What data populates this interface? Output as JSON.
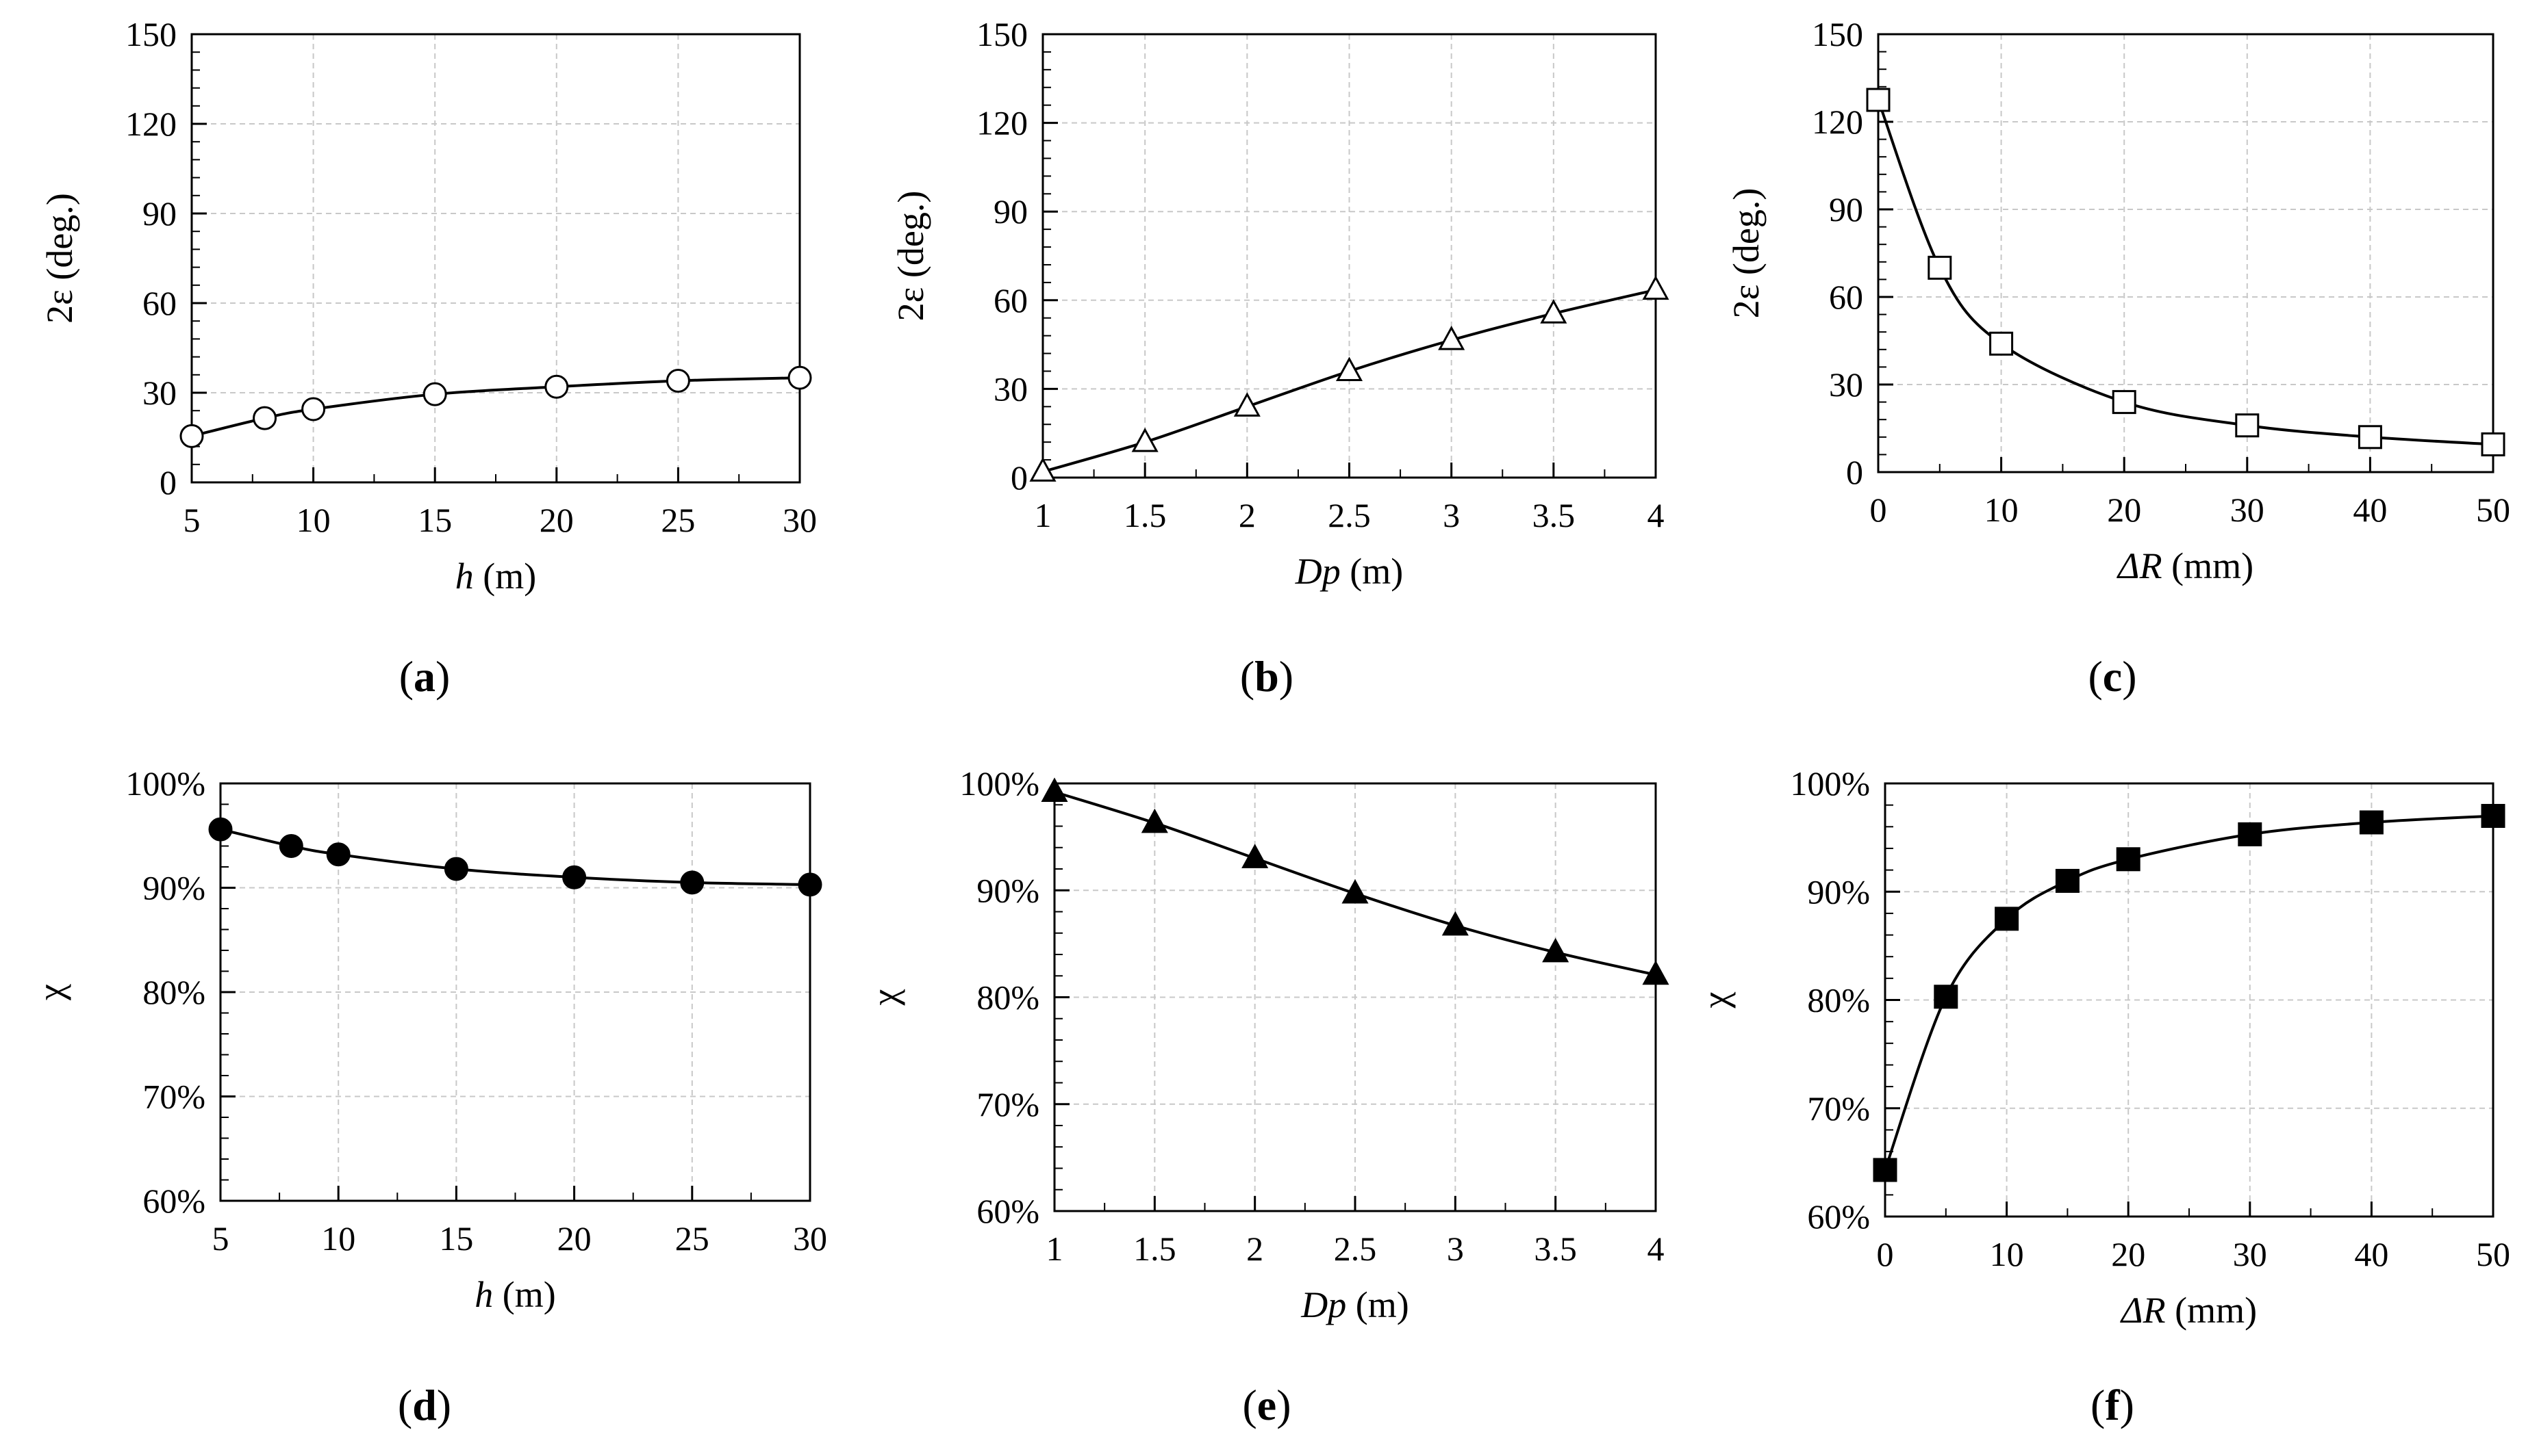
{
  "chart_data": [
    {
      "id": "a",
      "type": "line",
      "panel_label": "a",
      "marker": "circle-open",
      "ylabel": "2ε (deg.)",
      "xlabel": {
        "var": "h",
        "unit": " (m)"
      },
      "xlim": [
        5,
        30
      ],
      "ylim": [
        0,
        150
      ],
      "xticks": [
        5,
        10,
        15,
        20,
        25,
        30
      ],
      "yticks": [
        0,
        30,
        60,
        90,
        120,
        150
      ],
      "x": [
        5,
        8,
        10,
        15,
        20,
        25,
        30
      ],
      "y": [
        15.5,
        21.5,
        24.5,
        29.5,
        32,
        34,
        35
      ]
    },
    {
      "id": "b",
      "type": "line",
      "panel_label": "b",
      "marker": "triangle-open",
      "ylabel": "2ε (deg.)",
      "xlabel": {
        "var": "Dp",
        "unit": " (m)"
      },
      "xlim": [
        1,
        4
      ],
      "ylim": [
        0,
        150
      ],
      "xticks": [
        1,
        1.5,
        2,
        2.5,
        3,
        3.5,
        4
      ],
      "yticks": [
        0,
        30,
        60,
        90,
        120,
        150
      ],
      "x": [
        1,
        1.5,
        2,
        2.5,
        3,
        3.5,
        4
      ],
      "y": [
        2,
        12,
        24,
        36,
        46.5,
        55.5,
        63.5
      ]
    },
    {
      "id": "c",
      "type": "line",
      "panel_label": "c",
      "marker": "square-open",
      "ylabel": "2ε (deg.)",
      "xlabel": {
        "var": "ΔR",
        "unit": " (mm)"
      },
      "xlim": [
        0,
        50
      ],
      "ylim": [
        0,
        150
      ],
      "xticks": [
        0,
        10,
        20,
        30,
        40,
        50
      ],
      "yticks": [
        0,
        30,
        60,
        90,
        120,
        150
      ],
      "x": [
        0,
        5,
        10,
        20,
        30,
        40,
        50
      ],
      "y": [
        127.5,
        70,
        44,
        24,
        16,
        12,
        9.5
      ]
    },
    {
      "id": "d",
      "type": "line",
      "panel_label": "d",
      "marker": "circle-filled",
      "ylabel": "χ",
      "xlabel": {
        "var": "h",
        "unit": " (m)"
      },
      "xlim": [
        5,
        30
      ],
      "ylim": [
        60,
        100
      ],
      "xticks": [
        5,
        10,
        15,
        20,
        25,
        30
      ],
      "yticks": [
        60,
        70,
        80,
        90,
        100
      ],
      "y_suffix": "%",
      "x": [
        5,
        8,
        10,
        15,
        20,
        25,
        30
      ],
      "y": [
        95.6,
        94,
        93.2,
        91.8,
        91,
        90.5,
        90.3
      ]
    },
    {
      "id": "e",
      "type": "line",
      "panel_label": "e",
      "marker": "triangle-filled",
      "ylabel": "χ",
      "xlabel": {
        "var": "Dp",
        "unit": " (m)"
      },
      "xlim": [
        1,
        4
      ],
      "ylim": [
        60,
        100
      ],
      "xticks": [
        1,
        1.5,
        2,
        2.5,
        3,
        3.5,
        4
      ],
      "yticks": [
        60,
        70,
        80,
        90,
        100
      ],
      "y_suffix": "%",
      "x": [
        1,
        1.5,
        2,
        2.5,
        3,
        3.5,
        4
      ],
      "y": [
        99.2,
        96.3,
        93,
        89.7,
        86.7,
        84.2,
        82.1
      ]
    },
    {
      "id": "f",
      "type": "line",
      "panel_label": "f",
      "marker": "square-filled",
      "ylabel": "χ",
      "xlabel": {
        "var": "ΔR",
        "unit": " (mm)"
      },
      "xlim": [
        0,
        50
      ],
      "ylim": [
        60,
        100
      ],
      "xticks": [
        0,
        10,
        20,
        30,
        40,
        50
      ],
      "yticks": [
        60,
        70,
        80,
        90,
        100
      ],
      "y_suffix": "%",
      "x": [
        0,
        5,
        10,
        15,
        20,
        30,
        40,
        50
      ],
      "y": [
        64.3,
        80.3,
        87.5,
        91,
        93,
        95.3,
        96.4,
        97
      ]
    }
  ]
}
